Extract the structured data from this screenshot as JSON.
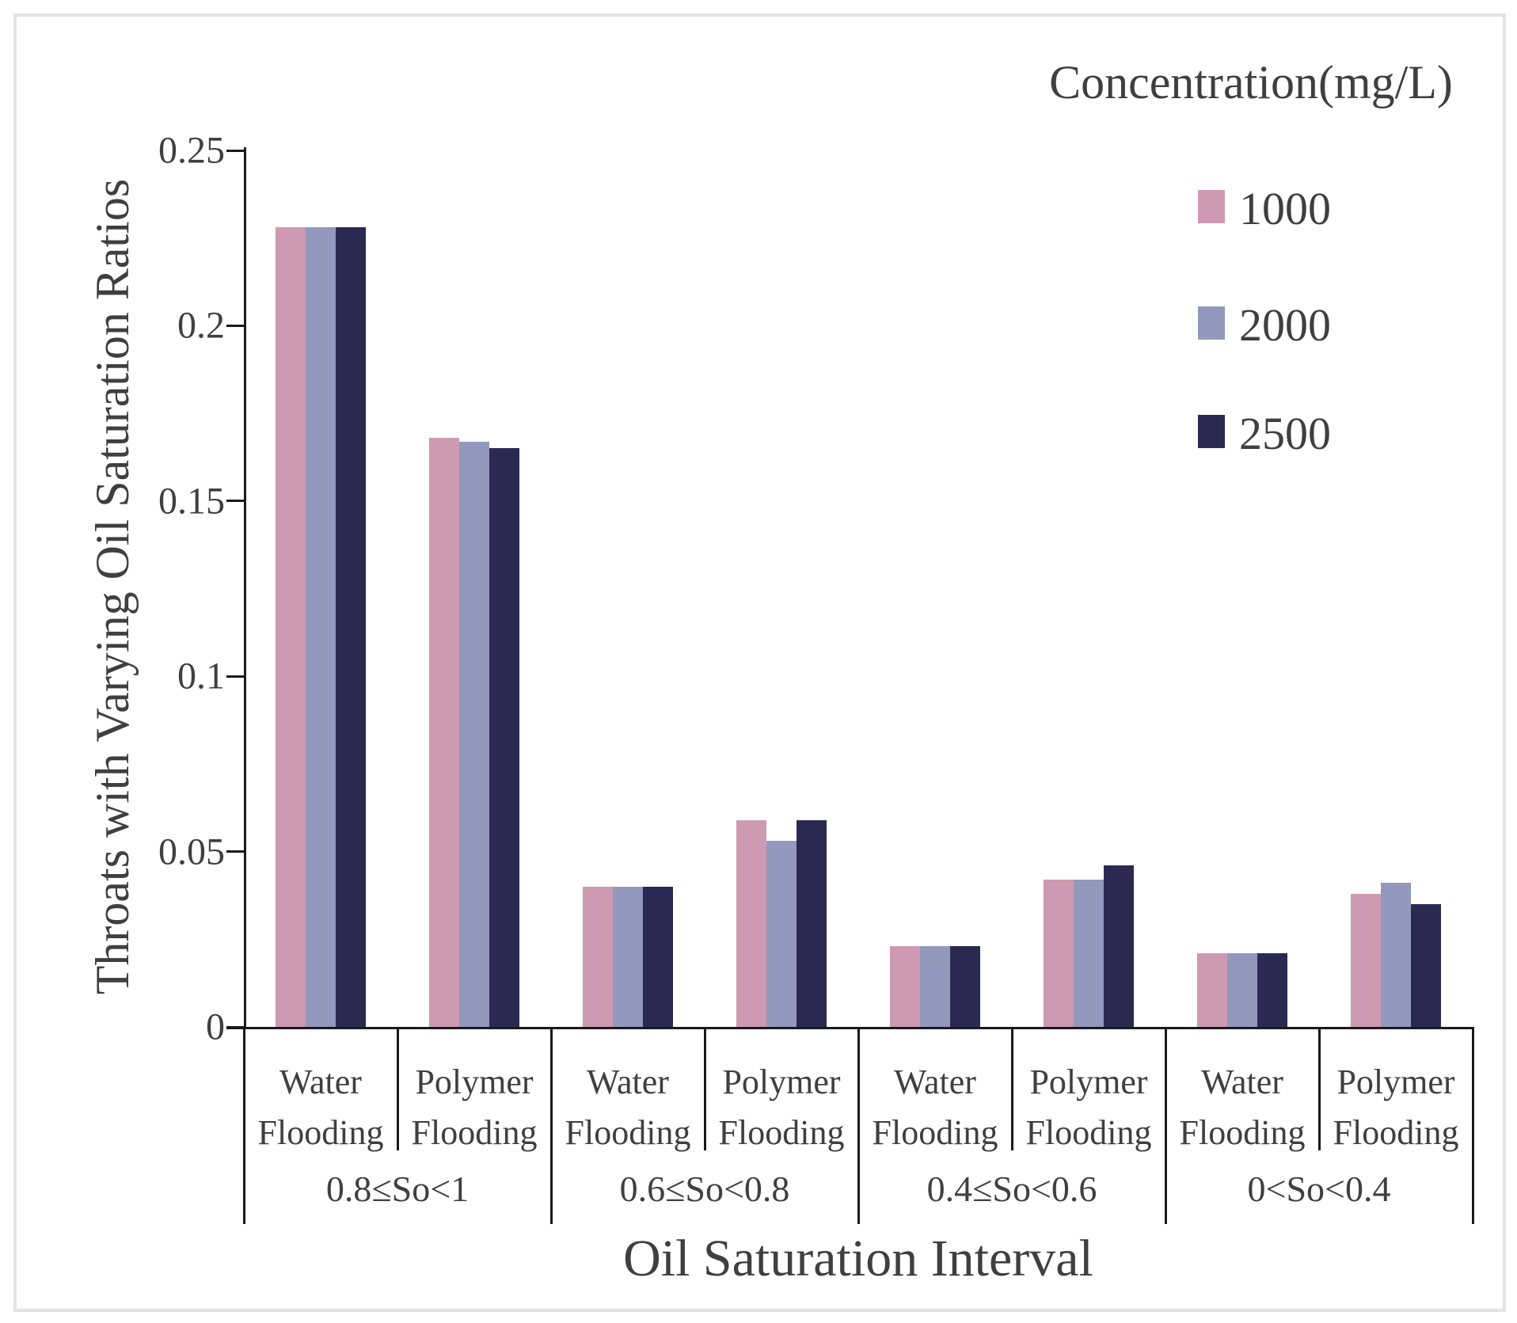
{
  "chart_data": {
    "type": "bar",
    "title": "",
    "ylabel": "Throats with Varying Oil Saturation Ratios",
    "xlabel": "Oil Saturation Interval",
    "ylim": [
      0,
      0.25
    ],
    "grid": false,
    "yticks": [
      0,
      0.05,
      0.1,
      0.15,
      0.2,
      0.25
    ],
    "ytick_labels": [
      "0",
      "0.05",
      "0.1",
      "0.15",
      "0.2",
      "0.25"
    ],
    "legend": {
      "title": "Concentration(mg/L)",
      "position": "top-right",
      "entries": [
        {
          "name": "1000",
          "color": "#cd9ab1"
        },
        {
          "name": "2000",
          "color": "#9398bd"
        },
        {
          "name": "2500",
          "color": "#2b2951"
        }
      ]
    },
    "series_names": [
      "1000",
      "2000",
      "2500"
    ],
    "groups": [
      {
        "label": "0.8≤So<1",
        "subcategories": [
          {
            "label": "Water Flooding",
            "values": [
              0.228,
              0.228,
              0.228
            ]
          },
          {
            "label": "Polymer Flooding",
            "values": [
              0.168,
              0.167,
              0.165
            ]
          }
        ]
      },
      {
        "label": "0.6≤So<0.8",
        "subcategories": [
          {
            "label": "Water Flooding",
            "values": [
              0.04,
              0.04,
              0.04
            ]
          },
          {
            "label": "Polymer Flooding",
            "values": [
              0.059,
              0.053,
              0.059
            ]
          }
        ]
      },
      {
        "label": "0.4≤So<0.6",
        "subcategories": [
          {
            "label": "Water Flooding",
            "values": [
              0.023,
              0.023,
              0.023
            ]
          },
          {
            "label": "Polymer Flooding",
            "values": [
              0.042,
              0.042,
              0.046
            ]
          }
        ]
      },
      {
        "label": "0<So<0.4",
        "subcategories": [
          {
            "label": "Water Flooding",
            "values": [
              0.021,
              0.021,
              0.021
            ]
          },
          {
            "label": "Polymer Flooding",
            "values": [
              0.038,
              0.041,
              0.035
            ]
          }
        ]
      }
    ]
  }
}
